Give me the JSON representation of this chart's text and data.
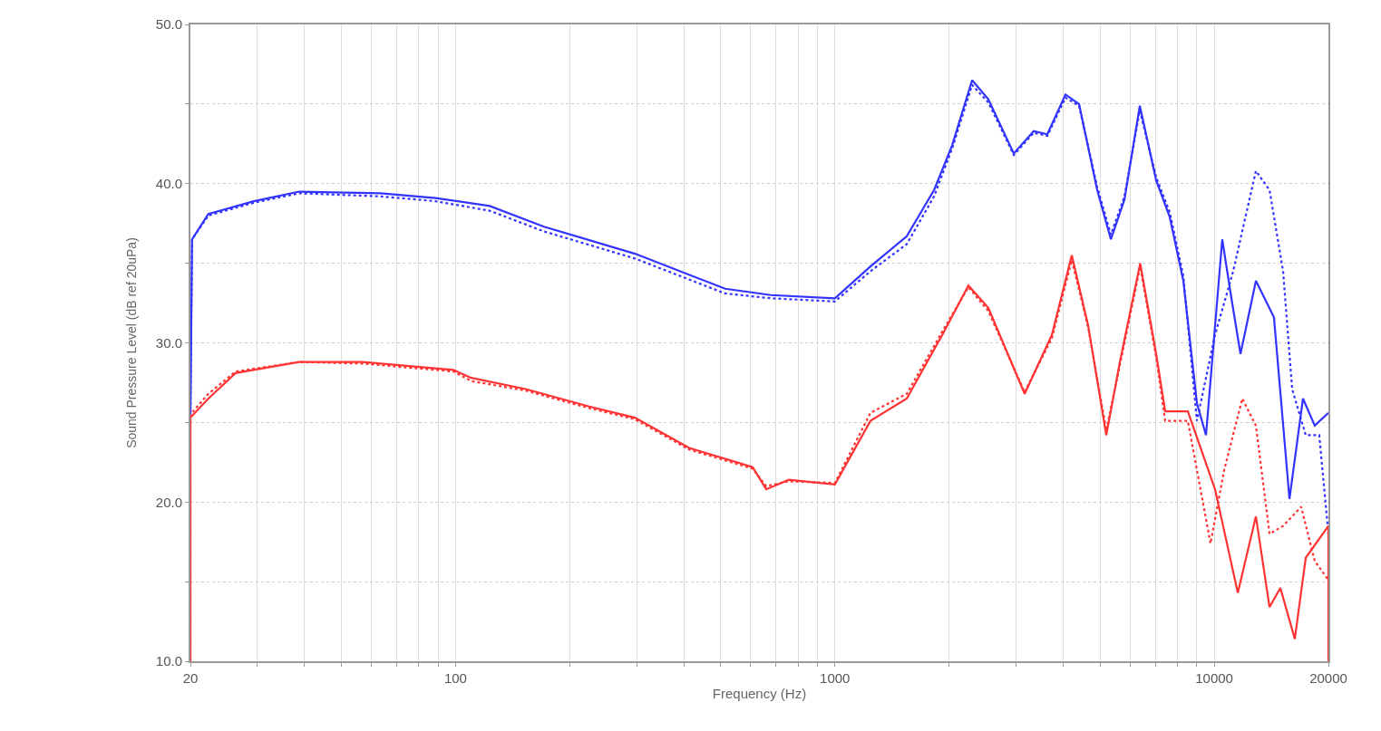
{
  "chart_data": {
    "type": "line",
    "xlabel": "Frequency (Hz)",
    "ylabel": "Sound Pressure Level (dB ref 20uPa)",
    "log": "x",
    "grid": true,
    "marker": "none",
    "xlim": [
      20,
      20000
    ],
    "ylim": [
      10,
      50
    ],
    "xticks": [
      20,
      {
        "value": 30,
        "label": null
      },
      {
        "value": 40,
        "label": null
      },
      {
        "value": 50,
        "label": null
      },
      {
        "value": 60,
        "label": null
      },
      {
        "value": 70,
        "label": null
      },
      {
        "value": 80,
        "label": null
      },
      {
        "value": 90,
        "label": null
      },
      100,
      {
        "value": 200,
        "label": null
      },
      {
        "value": 300,
        "label": null
      },
      {
        "value": 400,
        "label": null
      },
      {
        "value": 500,
        "label": null
      },
      {
        "value": 600,
        "label": null
      },
      {
        "value": 700,
        "label": null
      },
      {
        "value": 800,
        "label": null
      },
      {
        "value": 900,
        "label": null
      },
      1000,
      {
        "value": 2000,
        "label": null
      },
      {
        "value": 3000,
        "label": null
      },
      {
        "value": 4000,
        "label": null
      },
      {
        "value": 5000,
        "label": null
      },
      {
        "value": 6000,
        "label": null
      },
      {
        "value": 7000,
        "label": null
      },
      {
        "value": 8000,
        "label": null
      },
      {
        "value": 9000,
        "label": null
      },
      10000,
      20000
    ],
    "yticks": [
      {
        "value": 10,
        "label": "10.0"
      },
      {
        "value": 15,
        "label": null
      },
      {
        "value": 20,
        "label": "20.0"
      },
      {
        "value": 25,
        "label": null
      },
      {
        "value": 30,
        "label": "30.0"
      },
      {
        "value": 35,
        "label": null
      },
      {
        "value": 40,
        "label": "40.0"
      },
      {
        "value": 45,
        "label": null
      },
      {
        "value": 50,
        "label": "50.0"
      }
    ],
    "series": [
      {
        "color": "#3333ff",
        "line_style": "solid",
        "x": [
          20,
          20.2,
          22.3,
          29.4,
          38.7,
          63.5,
          88.4,
          123,
          171,
          297,
          514,
          678,
          1000,
          1241,
          1547,
          1826,
          2037,
          2300,
          2538,
          2962,
          3343,
          3631,
          4054,
          4402,
          4915,
          5340,
          5800,
          6366,
          7030,
          7634,
          8290,
          9004,
          9514,
          10500,
          11100,
          11730,
          12880,
          14370,
          15790,
          17140,
          18410,
          20000
        ],
        "values": [
          25.4,
          36.5,
          38.1,
          38.9,
          39.5,
          39.4,
          39.1,
          38.6,
          37.3,
          35.6,
          33.4,
          33.0,
          32.8,
          34.8,
          36.7,
          39.6,
          42.4,
          46.5,
          45.3,
          41.9,
          43.3,
          43.1,
          45.6,
          45.0,
          39.6,
          36.5,
          39.0,
          44.9,
          40.2,
          37.9,
          33.9,
          26.2,
          24.2,
          36.5,
          32.8,
          29.3,
          33.9,
          31.6,
          20.2,
          26.5,
          24.8,
          25.6
        ]
      },
      {
        "color": "#3333ff",
        "line_style": "dotted",
        "x": [
          20,
          20.2,
          22.3,
          29.4,
          38.7,
          63.5,
          88.4,
          123,
          171,
          297,
          514,
          678,
          1000,
          1241,
          1547,
          1826,
          2037,
          2300,
          2538,
          2962,
          3343,
          3631,
          4054,
          4402,
          4915,
          5340,
          5800,
          6366,
          7030,
          7634,
          8290,
          9004,
          10050,
          11220,
          12880,
          13990,
          15190,
          16050,
          17430,
          18920,
          20000
        ],
        "values": [
          25.4,
          36.5,
          38.0,
          38.8,
          39.4,
          39.2,
          38.9,
          38.3,
          37.0,
          35.3,
          33.1,
          32.8,
          32.6,
          34.5,
          36.2,
          39.2,
          42.2,
          46.2,
          45.1,
          41.8,
          43.2,
          43.0,
          45.4,
          44.9,
          39.8,
          36.8,
          39.2,
          44.6,
          40.4,
          38.2,
          34.2,
          25.1,
          30.5,
          34.5,
          40.8,
          39.6,
          34.5,
          27.1,
          24.2,
          24.2,
          18.0
        ]
      },
      {
        "color": "#ff3333",
        "line_style": "solid",
        "x": [
          20,
          20,
          22.3,
          26.3,
          38.7,
          56.9,
          79.2,
          98.7,
          110,
          153,
          225,
          297,
          413,
          607,
          659,
          756,
          1000,
          1241,
          1547,
          1929,
          2249,
          2538,
          3164,
          3733,
          4212,
          4651,
          5194,
          5640,
          6380,
          7030,
          7426,
          8521,
          10050,
          11540,
          12880,
          13990,
          14940,
          16310,
          17430,
          20000,
          20000
        ],
        "values": [
          10.0,
          25.3,
          26.5,
          28.1,
          28.8,
          28.8,
          28.5,
          28.3,
          27.8,
          27.1,
          26.0,
          25.3,
          23.4,
          22.2,
          20.8,
          21.4,
          21.1,
          25.1,
          26.5,
          30.6,
          33.6,
          32.2,
          26.8,
          30.5,
          35.5,
          31.1,
          24.2,
          28.8,
          35.0,
          29.3,
          25.7,
          25.7,
          20.8,
          14.3,
          19.1,
          13.4,
          14.6,
          11.4,
          16.5,
          18.5,
          10.0
        ]
      },
      {
        "color": "#ff3333",
        "line_style": "dotted",
        "x": [
          20,
          20,
          22.3,
          26.3,
          38.7,
          56.9,
          79.2,
          98.7,
          110,
          153,
          225,
          297,
          413,
          607,
          659,
          756,
          1000,
          1241,
          1547,
          1929,
          2249,
          2538,
          3164,
          3733,
          4212,
          4651,
          5194,
          5640,
          6380,
          7030,
          7426,
          8521,
          9778,
          10620,
          11860,
          12880,
          13990,
          15190,
          16950,
          18410,
          20000
        ],
        "values": [
          10.0,
          25.5,
          26.8,
          28.2,
          28.8,
          28.7,
          28.4,
          28.2,
          27.6,
          27.0,
          25.9,
          25.2,
          23.3,
          22.1,
          21.0,
          21.3,
          21.2,
          25.6,
          26.8,
          30.8,
          33.5,
          32.0,
          26.9,
          30.3,
          35.2,
          31.0,
          24.5,
          28.6,
          34.8,
          29.1,
          25.1,
          25.1,
          17.4,
          22.0,
          26.5,
          24.8,
          18.0,
          18.5,
          19.7,
          16.3,
          15.1
        ]
      }
    ]
  }
}
